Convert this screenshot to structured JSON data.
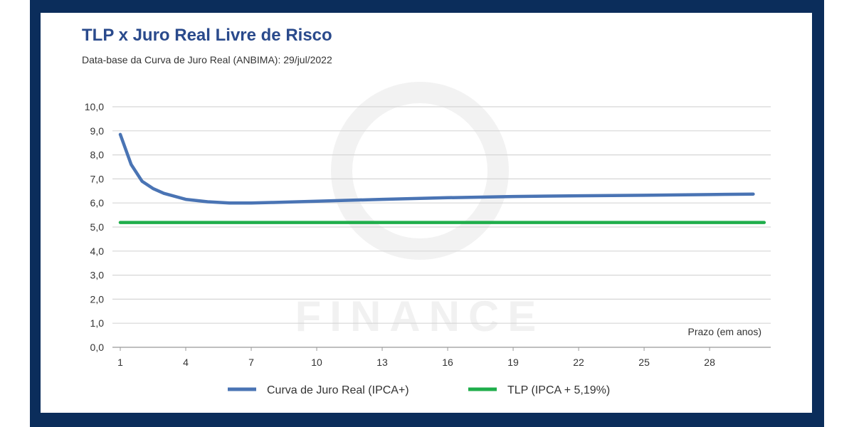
{
  "chart_data": {
    "type": "line",
    "title": "TLP x Juro Real Livre de Risco",
    "subtitle": "Data-base da Curva de Juro Real (ANBIMA): 29/jul/2022",
    "xlabel": "Prazo (em anos)",
    "ylabel": "",
    "xlim": [
      1,
      30.8
    ],
    "ylim": [
      0,
      10
    ],
    "x_ticks": [
      1,
      4,
      7,
      10,
      13,
      16,
      19,
      22,
      25,
      28
    ],
    "y_ticks": [
      "0,0",
      "1,0",
      "2,0",
      "3,0",
      "4,0",
      "5,0",
      "6,0",
      "7,0",
      "8,0",
      "9,0",
      "10,0"
    ],
    "grid": true,
    "legend_position": "bottom",
    "series": [
      {
        "name": "Curva de Juro Real (IPCA+)",
        "color": "#4a74b4",
        "x": [
          1,
          1.5,
          2,
          2.5,
          3,
          4,
          5,
          6,
          7,
          8,
          10,
          13,
          16,
          19,
          22,
          25,
          28,
          30
        ],
        "y": [
          8.85,
          7.6,
          6.9,
          6.6,
          6.4,
          6.15,
          6.05,
          6.0,
          6.0,
          6.02,
          6.07,
          6.15,
          6.22,
          6.27,
          6.3,
          6.32,
          6.35,
          6.37
        ]
      },
      {
        "name": "TLP (IPCA + 5,19%)",
        "color": "#1fae4b",
        "x": [
          1,
          30.5
        ],
        "y": [
          5.19,
          5.19
        ]
      }
    ],
    "watermark": "XVI FINANCE"
  }
}
